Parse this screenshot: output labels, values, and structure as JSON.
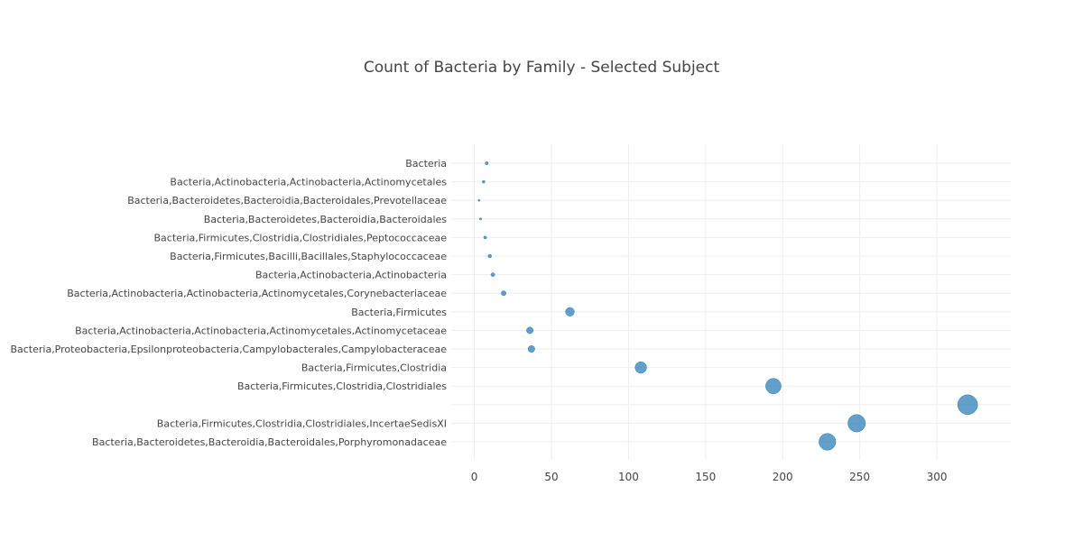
{
  "chart_data": {
    "type": "scatter",
    "title": "Count of Bacteria by Family - Selected Subject",
    "xlabel": "",
    "ylabel": "",
    "xlim": [
      -15,
      348
    ],
    "x_ticks": [
      0,
      50,
      100,
      150,
      200,
      250,
      300
    ],
    "grid": true,
    "marker_color": "#1f77b4",
    "marker_opacity": 0.7,
    "marker_size_encodes": "count",
    "categories": [
      "Bacteria",
      "Bacteria,Actinobacteria,Actinobacteria,Actinomycetales",
      "Bacteria,Bacteroidetes,Bacteroidia,Bacteroidales,Prevotellaceae",
      "Bacteria,Bacteroidetes,Bacteroidia,Bacteroidales",
      "Bacteria,Firmicutes,Clostridia,Clostridiales,Peptococcaceae",
      "Bacteria,Firmicutes,Bacilli,Bacillales,Staphylococcaceae",
      "Bacteria,Actinobacteria,Actinobacteria",
      "Bacteria,Actinobacteria,Actinobacteria,Actinomycetales,Corynebacteriaceae",
      "Bacteria,Firmicutes",
      "Bacteria,Actinobacteria,Actinobacteria,Actinomycetales,Actinomycetaceae",
      "Bacteria,Proteobacteria,Epsilonproteobacteria,Campylobacterales,Campylobacteraceae",
      "Bacteria,Firmicutes,Clostridia",
      "Bacteria,Firmicutes,Clostridia,Clostridiales",
      "",
      "Bacteria,Firmicutes,Clostridia,Clostridiales,IncertaeSedisXI",
      "Bacteria,Bacteroidetes,Bacteroidia,Bacteroidales,Porphyromonadaceae"
    ],
    "values": [
      8,
      6,
      3,
      4,
      7,
      10,
      12,
      19,
      62,
      36,
      37,
      108,
      194,
      320,
      248,
      229
    ]
  }
}
